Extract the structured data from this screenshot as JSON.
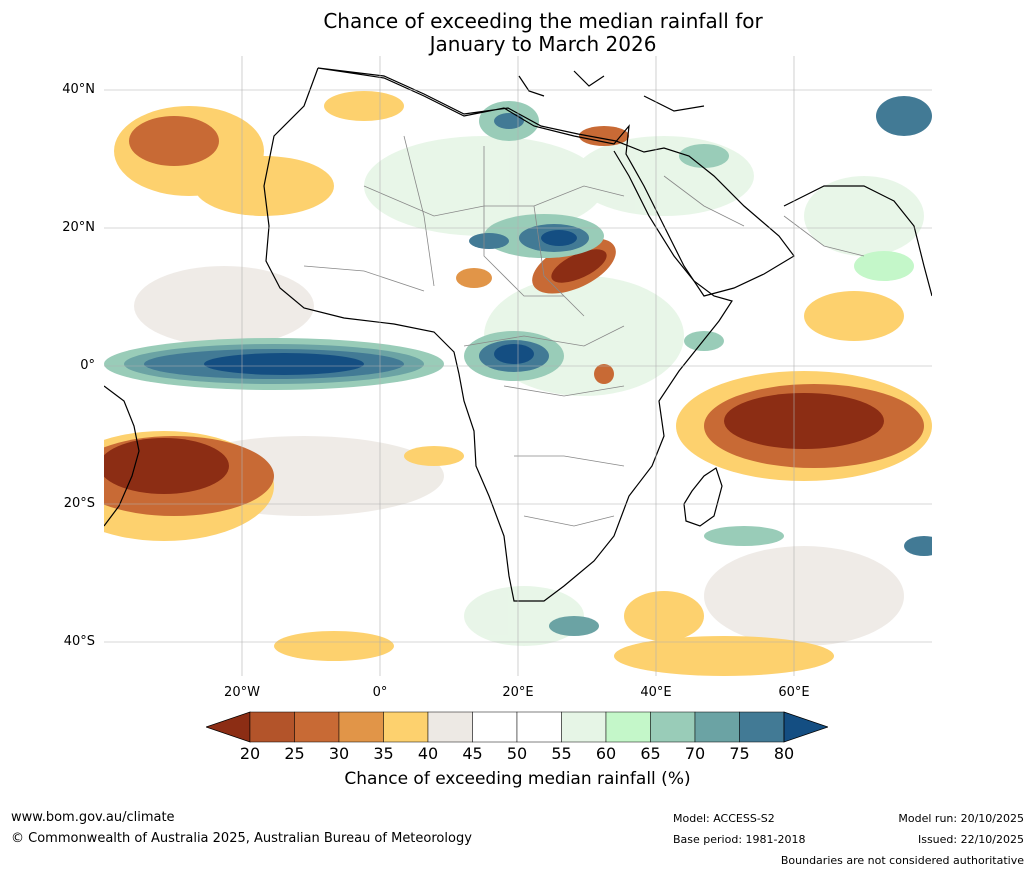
{
  "title": {
    "line1": "Chance of exceeding the median rainfall for",
    "line2": "January to March 2026"
  },
  "map": {
    "region": "Africa and surrounding oceans",
    "lat_labels": [
      "40°N",
      "20°N",
      "0°",
      "20°S",
      "40°S"
    ],
    "lon_labels": [
      "20°W",
      "0°",
      "20°E",
      "40°E",
      "60°E"
    ]
  },
  "colorbar": {
    "ticks": [
      "20",
      "25",
      "30",
      "35",
      "40",
      "45",
      "50",
      "55",
      "60",
      "65",
      "70",
      "75",
      "80"
    ],
    "colors": [
      "#8c2d14",
      "#b3542a",
      "#c86a35",
      "#e19548",
      "#fdd16e",
      "#ede9e4",
      "#ffffff",
      "#ffffff",
      "#e6f5e6",
      "#c4f7c9",
      "#99ccb8",
      "#6ba3a4",
      "#427a95",
      "#144e82"
    ],
    "label": "Chance of exceeding median rainfall (%)"
  },
  "footer": {
    "website": "www.bom.gov.au/climate",
    "copyright": "© Commonwealth of Australia 2025, Australian Bureau of Meteorology",
    "model": "Model: ACCESS-S2",
    "base_period": "Base period: 1981-2018",
    "model_run": "Model run: 20/10/2025",
    "issued": "Issued: 22/10/2025",
    "disclaimer": "Boundaries are not considered authoritative"
  }
}
